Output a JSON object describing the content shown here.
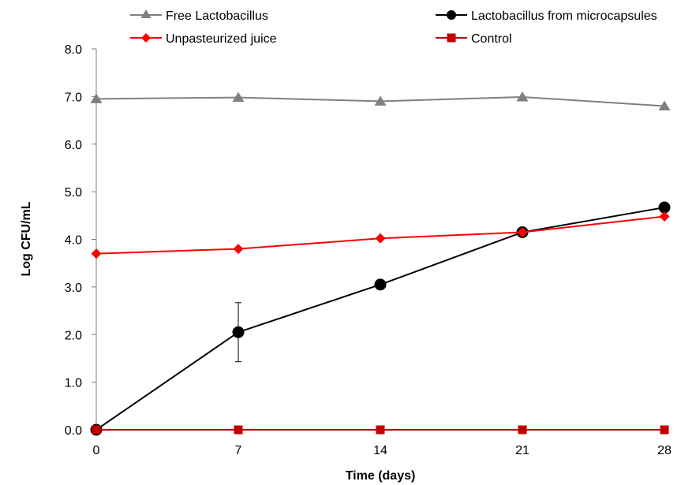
{
  "chart_data": {
    "type": "line",
    "xlabel": "Time (days)",
    "ylabel": "Log CFU/mL",
    "x": [
      0,
      7,
      14,
      21,
      28
    ],
    "xticks": [
      "0",
      "7",
      "14",
      "21",
      "28"
    ],
    "yticks": [
      "0.0",
      "1.0",
      "2.0",
      "3.0",
      "4.0",
      "5.0",
      "6.0",
      "7.0",
      "8.0"
    ],
    "xlim": [
      0,
      28
    ],
    "ylim": [
      0,
      8
    ],
    "grid": false,
    "legend_position": "top",
    "series": [
      {
        "name": "Free Lactobacillus",
        "values": [
          6.95,
          6.98,
          6.9,
          6.99,
          6.8
        ],
        "color": "#808080",
        "marker": "triangle"
      },
      {
        "name": "Lactobacillus from microcapsules",
        "values": [
          0.0,
          2.05,
          3.05,
          4.15,
          4.67
        ],
        "error": [
          0,
          0.62,
          0,
          0,
          0
        ],
        "color": "#000000",
        "marker": "circle"
      },
      {
        "name": "Unpasteurized juice",
        "values": [
          3.7,
          3.8,
          4.02,
          4.15,
          4.48
        ],
        "color": "#ff0000",
        "marker": "diamond"
      },
      {
        "name": "Control",
        "values": [
          0.0,
          0.0,
          0.0,
          0.0,
          0.0
        ],
        "color": "#c00000",
        "marker": "square"
      }
    ]
  }
}
